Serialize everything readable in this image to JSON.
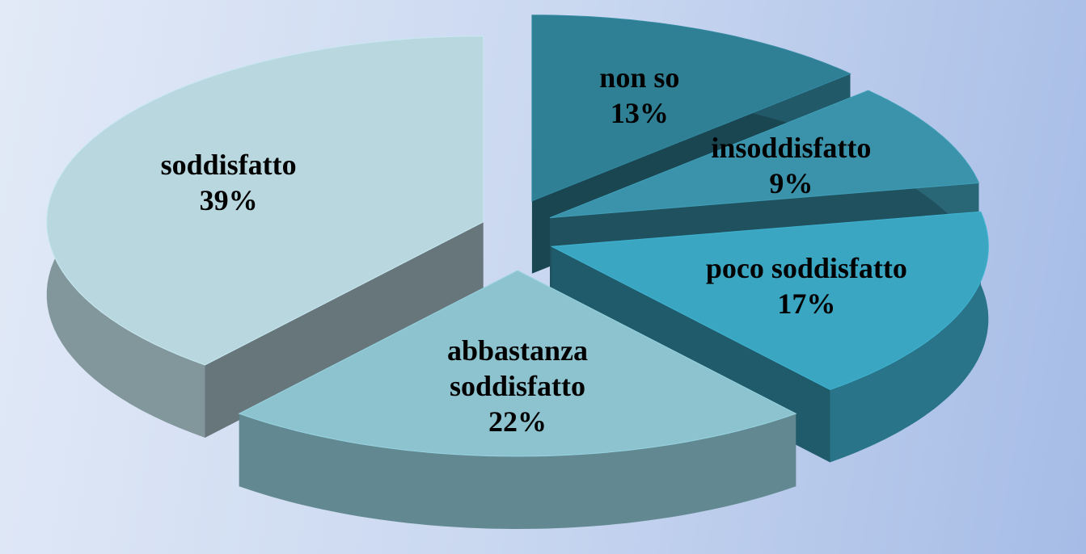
{
  "chart_data": {
    "type": "pie",
    "categories": [
      "non so",
      "insoddisfatto",
      "poco soddisfatto",
      "abbastanza soddisfatto",
      "soddisfatto"
    ],
    "values": [
      13,
      9,
      17,
      22,
      39
    ],
    "value_labels": [
      "13%",
      "9%",
      "17%",
      "22%",
      "39%"
    ],
    "colors": [
      "#2f7f95",
      "#3a93aa",
      "#3aa6c2",
      "#8cc3cf",
      "#b9d7df"
    ]
  }
}
